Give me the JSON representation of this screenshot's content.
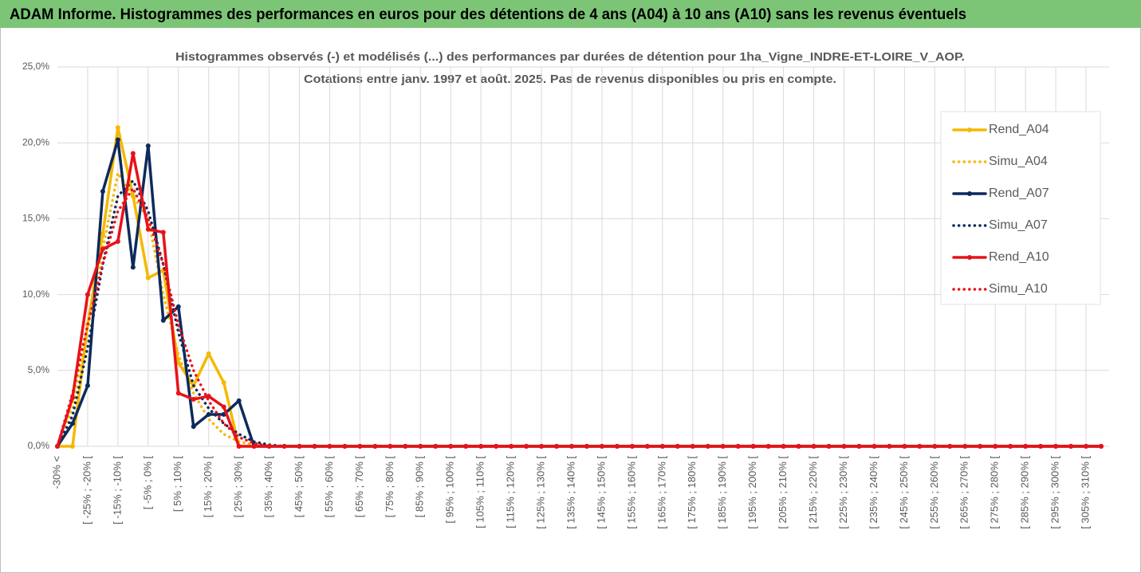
{
  "chart_data": {
    "type": "line",
    "header": "ADAM Informe. Histogrammes des performances en euros pour des détentions de 4 ans (A04) à 10 ans (A10) sans les revenus éventuels",
    "title": "Histogrammes observés (-) et modélisés (...) des performances par durées de détention pour 1ha_Vigne_INDRE-ET-LOIRE_V_AOP.",
    "subtitle": "Cotations entre janv. 1997 et août. 2025. Pas de revenus disponibles ou pris en compte.",
    "categories": [
      "-30% <",
      null,
      "[ -25% ; -20% [",
      null,
      "[ -15% ; -10% [",
      null,
      "[ -5% ; 0% [",
      null,
      "[ 5% ; 10% [",
      null,
      "[ 15% ; 20% [",
      null,
      "[ 25% ; 30% [",
      null,
      "[ 35% ; 40% [",
      null,
      "[ 45% ; 50% [",
      null,
      "[ 55% ; 60% [",
      null,
      "[ 65% ; 70% [",
      null,
      "[ 75% ; 80% [",
      null,
      "[ 85% ; 90% [",
      null,
      "[ 95% ; 100% [",
      null,
      "[ 105% ; 110% [",
      null,
      "[ 115% ; 120% [",
      null,
      "[ 125% ; 130% [",
      null,
      "[ 135% ; 140% [",
      null,
      "[ 145% ; 150% [",
      null,
      "[ 155% ; 160% [",
      null,
      "[ 165% ; 170% [",
      null,
      "[ 175% ; 180% [",
      null,
      "[ 185% ; 190% [",
      null,
      "[ 195% ; 200% [",
      null,
      "[ 205% ; 210% [",
      null,
      "[ 215% ; 220% [",
      null,
      "[ 225% ; 230% [",
      null,
      "[ 235% ; 240% [",
      null,
      "[ 245% ; 250% [",
      null,
      "[ 255% ; 260% [",
      null,
      "[ 265% ; 270% [",
      null,
      "[ 275% ; 280% [",
      null,
      "[ 285% ; 290% [",
      null,
      "[ 295% ; 300% [",
      null,
      "[ 305% ; 310% [",
      null
    ],
    "series": [
      {
        "name": "Rend_A04",
        "color": "#f5b800",
        "style": "solid",
        "markers": true,
        "values": [
          0,
          0,
          8,
          14,
          21.0,
          16.5,
          11.1,
          11.6,
          5.5,
          4.0,
          6.1,
          4.2,
          0,
          0,
          0,
          0,
          0,
          0,
          0,
          0,
          0,
          0,
          0,
          0,
          0,
          0,
          0,
          0,
          0,
          0,
          0,
          0,
          0,
          0,
          0,
          0,
          0,
          0,
          0,
          0,
          0,
          0,
          0,
          0,
          0,
          0,
          0,
          0,
          0,
          0,
          0,
          0,
          0,
          0,
          0,
          0,
          0,
          0,
          0,
          0,
          0,
          0,
          0,
          0,
          0,
          0,
          0,
          0,
          0,
          0
        ]
      },
      {
        "name": "Simu_A04",
        "color": "#f5b800",
        "style": "dotted",
        "markers": false,
        "values": [
          0,
          2.5,
          8,
          13,
          18,
          16.5,
          15,
          10,
          6,
          3.5,
          1.8,
          0.8,
          0.3,
          0.1,
          0,
          0,
          0,
          0,
          0,
          0,
          0,
          0,
          0,
          0,
          0,
          0,
          0,
          0,
          0,
          0,
          0,
          0,
          0,
          0,
          0,
          0,
          0,
          0,
          0,
          0,
          0,
          0,
          0,
          0,
          0,
          0,
          0,
          0,
          0,
          0,
          0,
          0,
          0,
          0,
          0,
          0,
          0,
          0,
          0,
          0,
          0,
          0,
          0,
          0,
          0,
          0,
          0,
          0,
          0,
          0
        ]
      },
      {
        "name": "Rend_A07",
        "color": "#0d2a5c",
        "style": "solid",
        "markers": true,
        "values": [
          0,
          1.5,
          4.0,
          16.8,
          20.2,
          11.8,
          19.8,
          8.3,
          9.2,
          1.3,
          2.1,
          2.1,
          3.0,
          0,
          0,
          0,
          0,
          0,
          0,
          0,
          0,
          0,
          0,
          0,
          0,
          0,
          0,
          0,
          0,
          0,
          0,
          0,
          0,
          0,
          0,
          0,
          0,
          0,
          0,
          0,
          0,
          0,
          0,
          0,
          0,
          0,
          0,
          0,
          0,
          0,
          0,
          0,
          0,
          0,
          0,
          0,
          0,
          0,
          0,
          0,
          0,
          0,
          0,
          0,
          0,
          0,
          0,
          0,
          0,
          0
        ]
      },
      {
        "name": "Simu_A07",
        "color": "#0d2a5c",
        "style": "dotted",
        "markers": false,
        "values": [
          0,
          2,
          6.5,
          12,
          16.5,
          17.5,
          15.5,
          12,
          7.5,
          4,
          2.5,
          1.5,
          0.8,
          0.3,
          0.1,
          0,
          0,
          0,
          0,
          0,
          0,
          0,
          0,
          0,
          0,
          0,
          0,
          0,
          0,
          0,
          0,
          0,
          0,
          0,
          0,
          0,
          0,
          0,
          0,
          0,
          0,
          0,
          0,
          0,
          0,
          0,
          0,
          0,
          0,
          0,
          0,
          0,
          0,
          0,
          0,
          0,
          0,
          0,
          0,
          0,
          0,
          0,
          0,
          0,
          0,
          0,
          0,
          0,
          0,
          0
        ]
      },
      {
        "name": "Rend_A10",
        "color": "#e8121a",
        "style": "solid",
        "markers": true,
        "values": [
          0,
          3.2,
          10.0,
          13.0,
          13.5,
          19.3,
          14.3,
          14.1,
          3.5,
          3.1,
          3.3,
          2.6,
          0,
          0,
          0,
          0,
          0,
          0,
          0,
          0,
          0,
          0,
          0,
          0,
          0,
          0,
          0,
          0,
          0,
          0,
          0,
          0,
          0,
          0,
          0,
          0,
          0,
          0,
          0,
          0,
          0,
          0,
          0,
          0,
          0,
          0,
          0,
          0,
          0,
          0,
          0,
          0,
          0,
          0,
          0,
          0,
          0,
          0,
          0,
          0,
          0,
          0,
          0,
          0,
          0,
          0,
          0,
          0,
          0,
          0
        ]
      },
      {
        "name": "Simu_A10",
        "color": "#e8121a",
        "style": "dotted",
        "markers": false,
        "values": [
          0,
          3.5,
          8,
          12,
          15.5,
          17,
          15,
          12,
          8,
          5,
          3,
          1.5,
          0.6,
          0.2,
          0,
          0,
          0,
          0,
          0,
          0,
          0,
          0,
          0,
          0,
          0,
          0,
          0,
          0,
          0,
          0,
          0,
          0,
          0,
          0,
          0,
          0,
          0,
          0,
          0,
          0,
          0,
          0,
          0,
          0,
          0,
          0,
          0,
          0,
          0,
          0,
          0,
          0,
          0,
          0,
          0,
          0,
          0,
          0,
          0,
          0,
          0,
          0,
          0,
          0,
          0,
          0,
          0,
          0,
          0,
          0
        ]
      }
    ],
    "ylim": [
      0,
      25
    ],
    "yticks": [
      {
        "value": 0,
        "label": "0,0%"
      },
      {
        "value": 5,
        "label": "5,0%"
      },
      {
        "value": 10,
        "label": "10,0%"
      },
      {
        "value": 15,
        "label": "15,0%"
      },
      {
        "value": 20,
        "label": "20,0%"
      },
      {
        "value": 25,
        "label": "25,0%"
      }
    ],
    "grid": true,
    "legend": "right"
  }
}
